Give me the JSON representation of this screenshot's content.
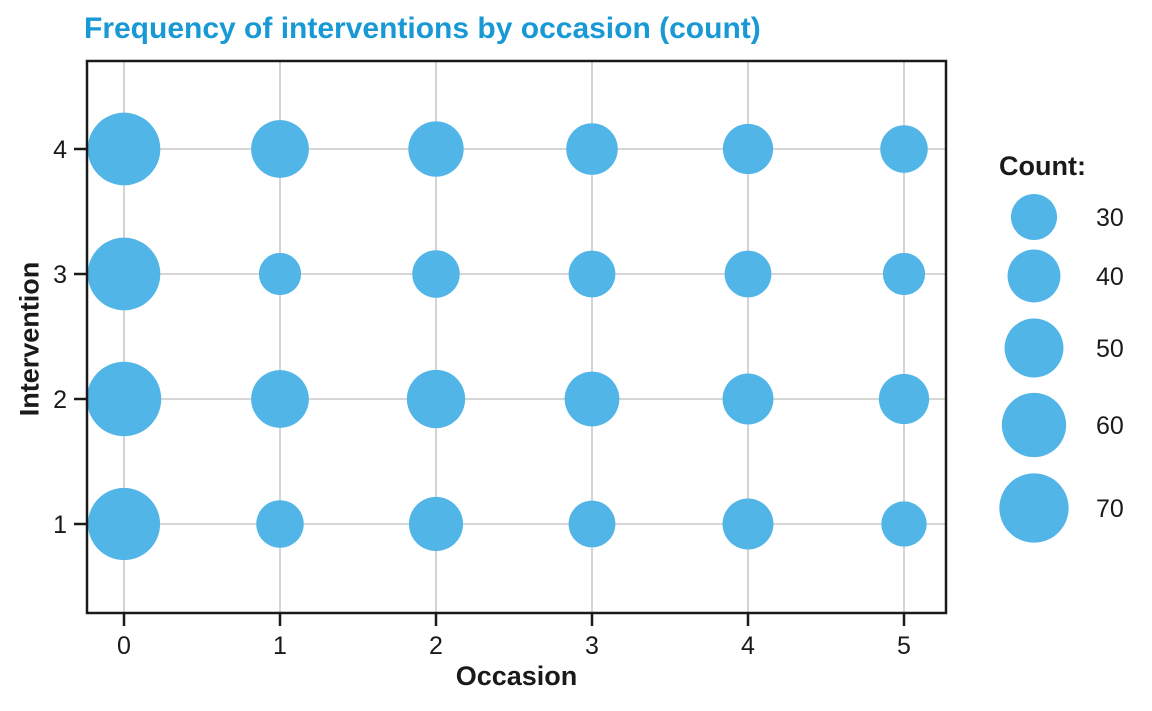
{
  "colors": {
    "title_accent": "#1899d6",
    "bubble_fill": "#52b5e8",
    "gridline": "#c9c9c9",
    "axis_stroke": "#1a1a1a",
    "text": "#1a1a1a",
    "background": "#ffffff"
  },
  "chart_data": {
    "type": "scatter",
    "subtype": "bubble",
    "title": "Frequency of interventions by occasion (count)",
    "xlabel": "Occasion",
    "ylabel": "Intervention",
    "x_ticks": [
      "0",
      "1",
      "2",
      "3",
      "4",
      "5"
    ],
    "y_ticks": [
      "1",
      "2",
      "3",
      "4"
    ],
    "xlim": [
      -0.24,
      5.27
    ],
    "ylim": [
      0.3,
      4.71
    ],
    "grid": "major-both",
    "occasions": [
      0,
      1,
      2,
      3,
      4,
      5
    ],
    "series": [
      {
        "name": "Intervention 4",
        "intervention": 4,
        "counts": [
          77,
          48,
          44,
          38,
          36,
          32
        ]
      },
      {
        "name": "Intervention 3",
        "intervention": 3,
        "counts": [
          77,
          25,
          32,
          31,
          31,
          25
        ]
      },
      {
        "name": "Intervention 2",
        "intervention": 2,
        "counts": [
          81,
          48,
          49,
          43,
          37,
          36
        ]
      },
      {
        "name": "Intervention 1",
        "intervention": 1,
        "counts": [
          76,
          32,
          42,
          31,
          37,
          29
        ]
      }
    ],
    "legend": {
      "title": "Count:",
      "values": [
        30,
        40,
        50,
        60,
        70
      ],
      "labels": [
        "30",
        "40",
        "50",
        "60",
        "70"
      ],
      "position": "right"
    }
  }
}
